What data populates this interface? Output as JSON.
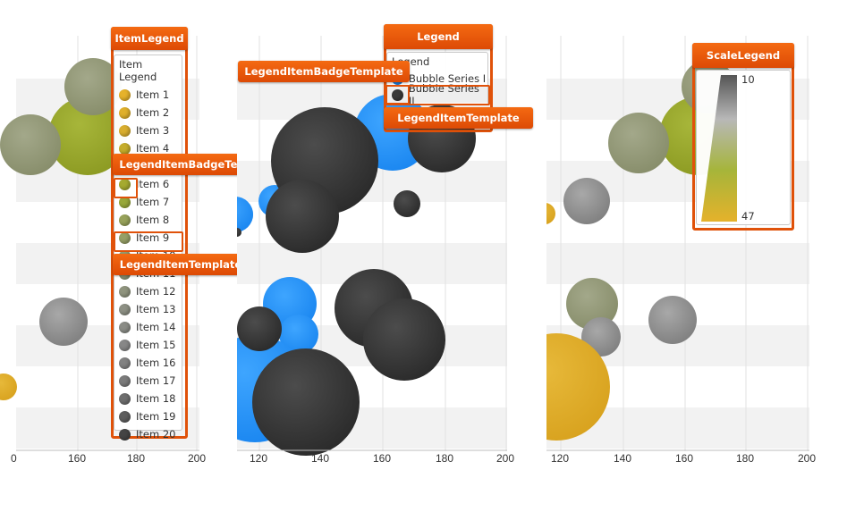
{
  "panels": [
    {
      "id": "item-legend-panel",
      "x_ticks": [
        "0",
        "160",
        "180",
        "200"
      ],
      "title": "ItemLegend",
      "legend_header": "Item Legend",
      "items": [
        {
          "label": "Item 1",
          "color": "#e5b22b"
        },
        {
          "label": "Item 2",
          "color": "#dfb02c"
        },
        {
          "label": "Item 3",
          "color": "#d9ae2d"
        },
        {
          "label": "Item 4",
          "color": "#c5ad2a"
        },
        {
          "label": "Item 5",
          "color": "#b2ac2c"
        },
        {
          "label": "Item 6",
          "color": "#a5aa30"
        },
        {
          "label": "Item 7",
          "color": "#98a83a"
        },
        {
          "label": "Item 8",
          "color": "#97a25a"
        },
        {
          "label": "Item 9",
          "color": "#959f66"
        },
        {
          "label": "Item 10",
          "color": "#939b70"
        },
        {
          "label": "Item 11",
          "color": "#919878"
        },
        {
          "label": "Item 12",
          "color": "#8f947e"
        },
        {
          "label": "Item 13",
          "color": "#8d9084"
        },
        {
          "label": "Item 14",
          "color": "#8a8c86"
        },
        {
          "label": "Item 15",
          "color": "#878787"
        },
        {
          "label": "Item 16",
          "color": "#828282"
        },
        {
          "label": "Item 17",
          "color": "#7b7b7b"
        },
        {
          "label": "Item 18",
          "color": "#6e6e6e"
        },
        {
          "label": "Item 19",
          "color": "#5e5e5e"
        },
        {
          "label": "Item 20",
          "color": "#444444"
        }
      ],
      "badge_template_label": "LegendItemBadgeTemplate",
      "item_template_label": "LegendItemTemplate"
    },
    {
      "id": "legend-panel",
      "x_ticks": [
        "120",
        "140",
        "160",
        "180",
        "200"
      ],
      "title": "Legend",
      "legend_header": "Legend",
      "series": [
        {
          "label": "Bubble Series I",
          "color": "#1e90ff"
        },
        {
          "label": "Bubble Series II",
          "color": "#3a3a3a"
        }
      ],
      "badge_template_label": "LegendItemBadgeTemplate",
      "item_template_label": "LegendItemTemplate"
    },
    {
      "id": "scale-legend-panel",
      "x_ticks": [
        "120",
        "140",
        "160",
        "180",
        "200"
      ],
      "title": "ScaleLegend",
      "scale_max": "10",
      "scale_min": "47"
    }
  ],
  "colors": {
    "accent_orange": "#e0520a",
    "blue_series": "#1e90ff",
    "dark_series": "#3a3a3a"
  }
}
